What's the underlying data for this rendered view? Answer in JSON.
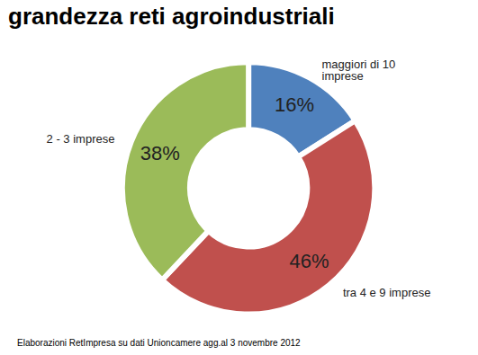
{
  "chart_data": {
    "type": "pie",
    "title": "grandezza reti agroindustriali",
    "categories": [
      "maggiori di 10 imprese",
      "tra 4 e 9 imprese",
      "2 - 3 imprese"
    ],
    "values": [
      16,
      46,
      38
    ],
    "value_labels": [
      "16%",
      "46%",
      "38%"
    ],
    "colors": [
      "#4f81bd",
      "#c0504d",
      "#9bbb59"
    ],
    "data_labels": true,
    "annotations": [
      "Elaborazioni RetImpresa su dati Unioncamere agg.al 3 novembre 2012"
    ]
  }
}
